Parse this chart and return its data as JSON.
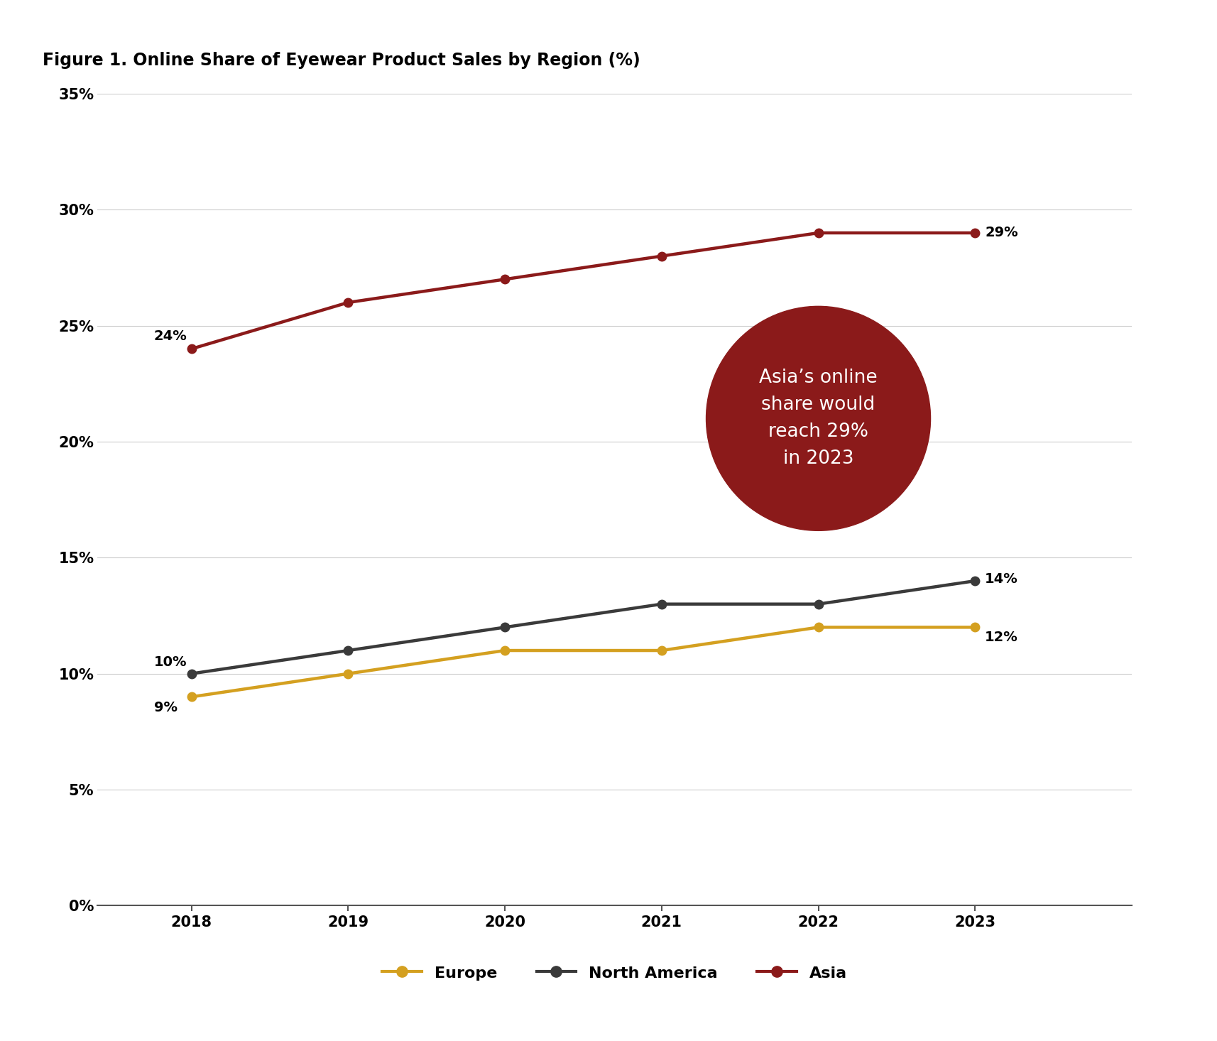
{
  "title": "Figure 1. Online Share of Eyewear Product Sales by Region (%)",
  "title_fontsize": 17,
  "years": [
    2018,
    2019,
    2020,
    2021,
    2022,
    2023
  ],
  "europe": [
    9,
    10,
    11,
    11,
    12,
    12
  ],
  "north_america": [
    10,
    11,
    12,
    13,
    13,
    14
  ],
  "asia": [
    24,
    26,
    27,
    28,
    29,
    29
  ],
  "europe_color": "#D4A020",
  "north_america_color": "#3a3a3a",
  "asia_color": "#8B1A1A",
  "circle_color": "#8B1A1A",
  "circle_text": "Asia’s online\nshare would\nreach 29%\nin 2023",
  "circle_text_color": "#ffffff",
  "top_bar_color": "#111111",
  "ylim": [
    0,
    35
  ],
  "yticks": [
    0,
    5,
    10,
    15,
    20,
    25,
    30,
    35
  ],
  "ytick_labels": [
    "0%",
    "5%",
    "10%",
    "15%",
    "20%",
    "25%",
    "30%",
    "35%"
  ],
  "linewidth": 3.2,
  "markersize": 9,
  "legend_labels": [
    "Europe",
    "North America",
    "Asia"
  ],
  "xlim_left": 2017.4,
  "xlim_right": 2024.0
}
